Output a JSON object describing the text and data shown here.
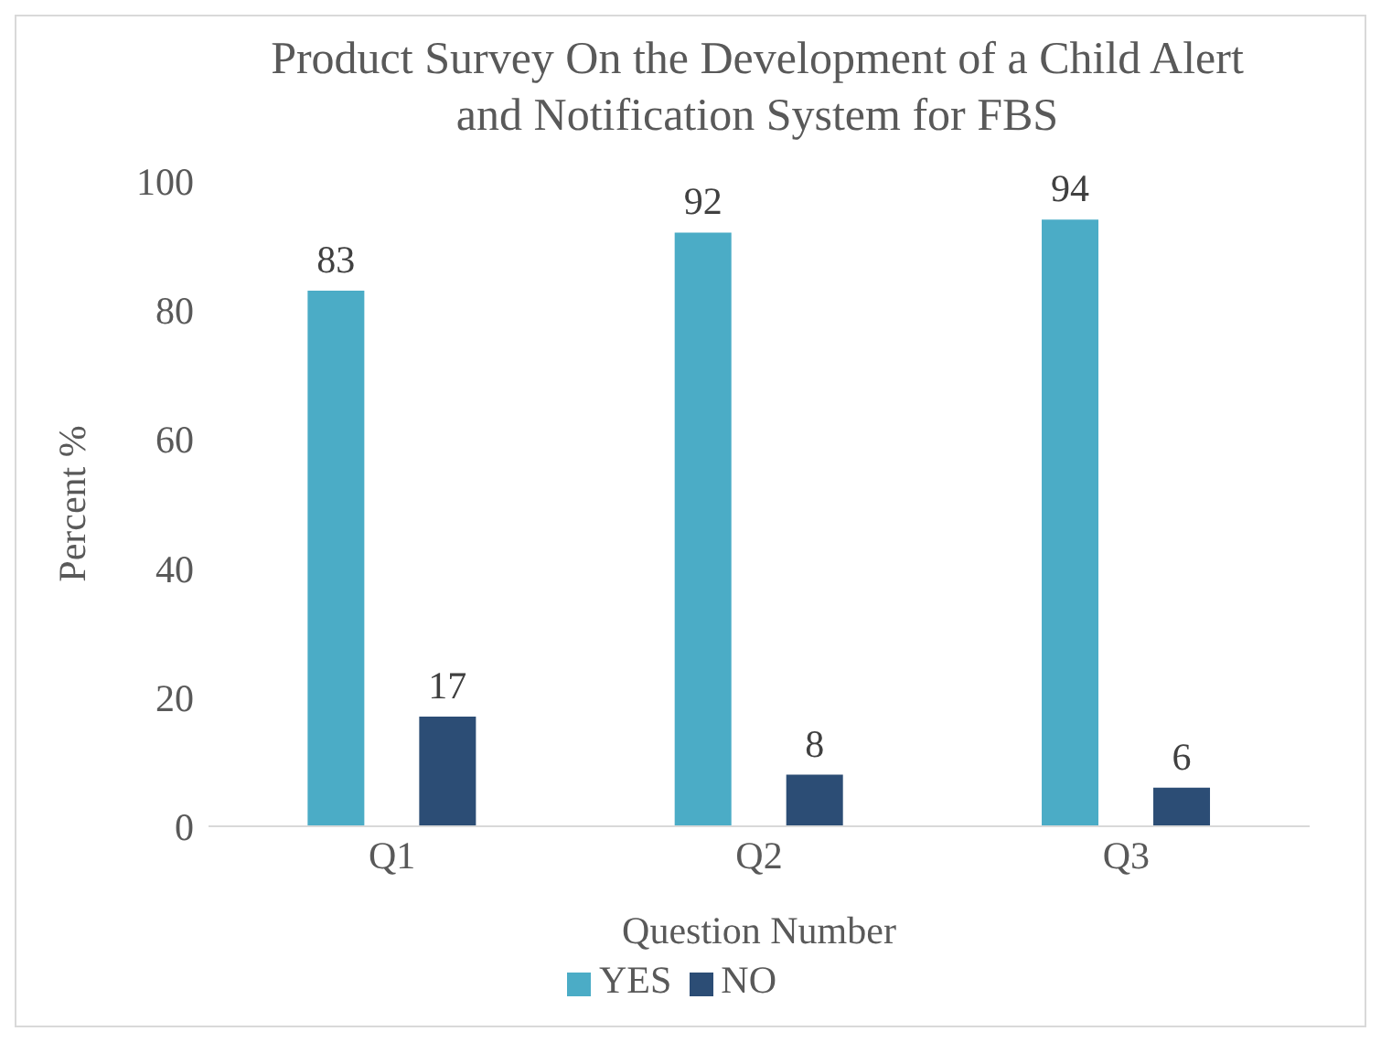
{
  "chart_data": {
    "type": "bar",
    "title": "Product Survey On the Development of a Child Alert and Notification System for FBS",
    "xlabel": "Question Number",
    "ylabel": "Percent %",
    "categories": [
      "Q1",
      "Q2",
      "Q3"
    ],
    "series": [
      {
        "name": "YES",
        "color": "#4bacc6",
        "values": [
          83,
          92,
          94
        ]
      },
      {
        "name": "NO",
        "color": "#2c4d75",
        "values": [
          17,
          8,
          6
        ]
      }
    ],
    "ylim": [
      0,
      100
    ],
    "yticks": [
      0,
      20,
      40,
      60,
      80,
      100
    ],
    "grid": false,
    "legend": "bottom",
    "data_labels": true
  }
}
